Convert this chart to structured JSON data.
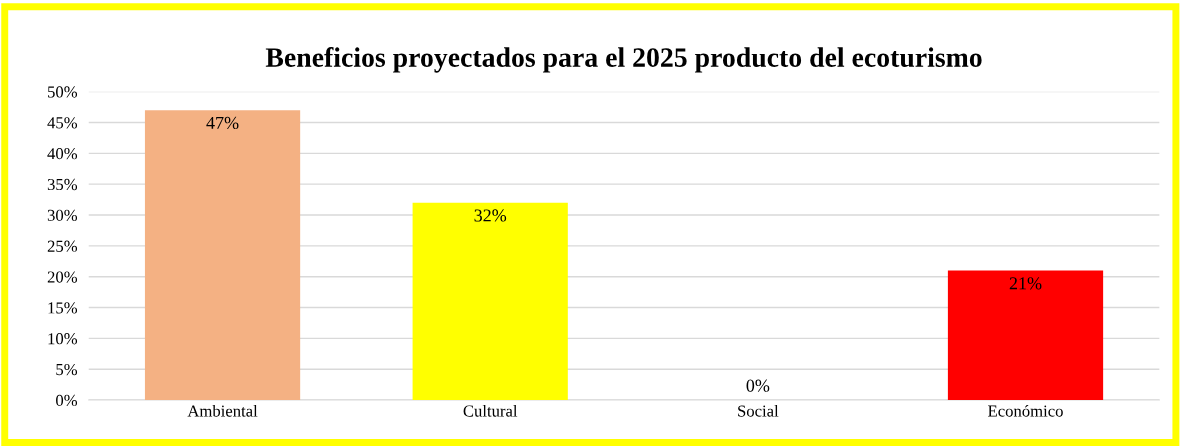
{
  "chart_data": {
    "type": "bar",
    "title": "Beneficios proyectados para el 2025 producto del ecoturismo",
    "categories": [
      "Ambiental",
      "Cultural",
      "Social",
      "Económico"
    ],
    "values": [
      47,
      32,
      0,
      21
    ],
    "colors": [
      "#f4b183",
      "#ffff00",
      "#a5a5a5",
      "#ff0000"
    ],
    "value_labels": [
      "47%",
      "32%",
      "0%",
      "21%"
    ],
    "ylim": [
      0,
      50
    ],
    "yticks": [
      {
        "value": 0,
        "label": "0%"
      },
      {
        "value": 5,
        "label": "5%"
      },
      {
        "value": 10,
        "label": "10%"
      },
      {
        "value": 15,
        "label": "15%"
      },
      {
        "value": 20,
        "label": "20%"
      },
      {
        "value": 25,
        "label": "25%"
      },
      {
        "value": 30,
        "label": "30%"
      },
      {
        "value": 35,
        "label": "35%"
      },
      {
        "value": 40,
        "label": "40%"
      },
      {
        "value": 45,
        "label": "45%"
      },
      {
        "value": 50,
        "label": "50%"
      }
    ],
    "grid": "y"
  }
}
